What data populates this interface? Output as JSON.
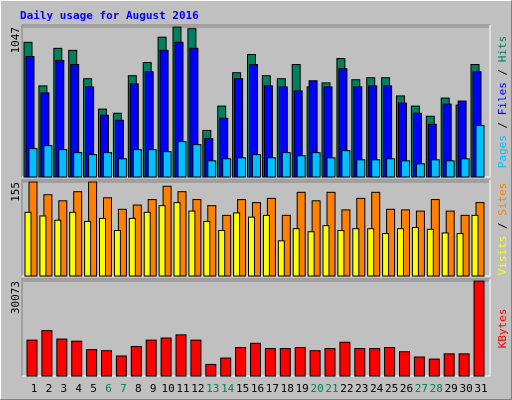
{
  "chart_data": [
    {
      "type": "bar",
      "title": "Daily usage for August 2016",
      "categories": [
        "1",
        "2",
        "3",
        "4",
        "5",
        "6",
        "7",
        "8",
        "9",
        "10",
        "11",
        "12",
        "13",
        "14",
        "15",
        "16",
        "17",
        "18",
        "19",
        "20",
        "21",
        "22",
        "23",
        "24",
        "25",
        "26",
        "27",
        "28",
        "29",
        "30",
        "31"
      ],
      "category_colors": [
        "#000000",
        "#000000",
        "#000000",
        "#000000",
        "#000000",
        "#00805c",
        "#00805c",
        "#000000",
        "#000000",
        "#000000",
        "#000000",
        "#000000",
        "#00805c",
        "#00805c",
        "#000000",
        "#000000",
        "#000000",
        "#000000",
        "#000000",
        "#00805c",
        "#00805c",
        "#000000",
        "#000000",
        "#000000",
        "#000000",
        "#000000",
        "#00805c",
        "#00805c",
        "#000000",
        "#000000",
        "#000000"
      ],
      "ylim": [
        0,
        1047
      ],
      "yticks": [
        1047
      ],
      "series": [
        {
          "name": "Hits",
          "color": "#00805c",
          "values": [
            940,
            636,
            898,
            884,
            686,
            474,
            445,
            707,
            799,
            976,
            1047,
            1035,
            325,
            495,
            728,
            855,
            707,
            686,
            785,
            629,
            657,
            827,
            679,
            693,
            693,
            566,
            495,
            424,
            551,
            502,
            785
          ]
        },
        {
          "name": "Files",
          "color": "#0000ff",
          "values": [
            841,
            587,
            813,
            785,
            629,
            431,
            396,
            650,
            735,
            884,
            940,
            898,
            269,
            410,
            686,
            785,
            636,
            629,
            601,
            672,
            629,
            756,
            629,
            636,
            636,
            516,
            445,
            368,
            509,
            530,
            735
          ]
        },
        {
          "name": "Pages",
          "color": "#00c0ff",
          "values": [
            198,
            219,
            191,
            170,
            156,
            170,
            127,
            191,
            191,
            177,
            247,
            226,
            113,
            127,
            134,
            156,
            134,
            170,
            148,
            170,
            134,
            184,
            120,
            120,
            127,
            113,
            92,
            120,
            113,
            127,
            360
          ]
        }
      ]
    },
    {
      "type": "bar",
      "ylim": [
        0,
        155
      ],
      "yticks": [
        155
      ],
      "series": [
        {
          "name": "Sites",
          "color": "#ff8000",
          "values": [
            155,
            134,
            124,
            139,
            155,
            129,
            110,
            117,
            126,
            148,
            139,
            126,
            116,
            100,
            126,
            121,
            128,
            100,
            138,
            124,
            138,
            109,
            128,
            138,
            110,
            109,
            107,
            126,
            107,
            100,
            121
          ]
        },
        {
          "name": "Visits",
          "color": "#ffff00",
          "values": [
            105,
            99,
            92,
            105,
            90,
            95,
            75,
            95,
            105,
            116,
            121,
            107,
            90,
            75,
            104,
            97,
            100,
            58,
            78,
            73,
            83,
            75,
            78,
            78,
            70,
            78,
            80,
            77,
            71,
            70,
            100
          ]
        }
      ]
    },
    {
      "type": "bar",
      "ylim": [
        0,
        30073
      ],
      "yticks": [
        30073
      ],
      "series": [
        {
          "name": "KBytes",
          "color": "#ff0000",
          "values": [
            11357,
            14364,
            11691,
            11023,
            8350,
            8016,
            6346,
            9352,
            11357,
            12025,
            13027,
            11357,
            3675,
            5679,
            9020,
            10356,
            8684,
            8684,
            9020,
            8016,
            8684,
            10690,
            8684,
            8684,
            9020,
            7682,
            6013,
            5345,
            7015,
            7015,
            30073
          ]
        }
      ]
    }
  ]
}
